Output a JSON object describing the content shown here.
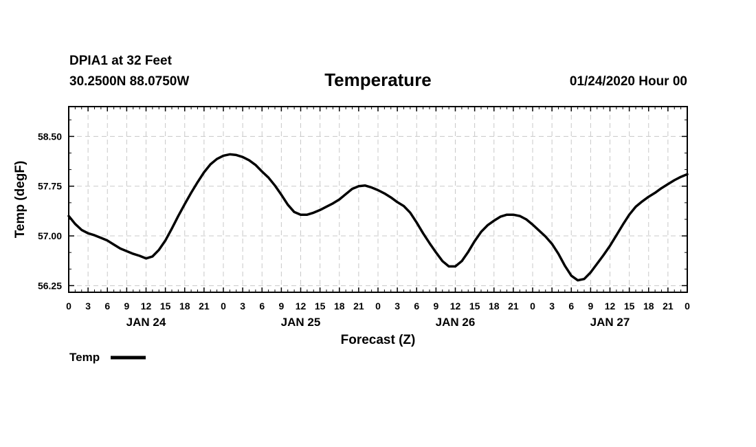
{
  "header": {
    "station": "DPIA1 at 32 Feet",
    "coords": "30.2500N 88.0750W",
    "datetime": "01/24/2020 Hour 00"
  },
  "chart_data": {
    "type": "line",
    "title": "Temperature",
    "xlabel": "Forecast (Z)",
    "ylabel": "Temp (degF)",
    "ylim": [
      56.15,
      58.95
    ],
    "xlim": [
      0,
      96
    ],
    "yticks": [
      56.25,
      57.0,
      57.75,
      58.5
    ],
    "ytick_labels": [
      "56.25",
      "57.00",
      "57.75",
      "58.50"
    ],
    "xtick_hours": [
      0,
      3,
      6,
      9,
      12,
      15,
      18,
      21,
      24,
      27,
      30,
      33,
      36,
      39,
      42,
      45,
      48,
      51,
      54,
      57,
      60,
      63,
      66,
      69,
      72,
      75,
      78,
      81,
      84,
      87,
      90,
      93,
      96
    ],
    "xtick_labels": [
      "0",
      "3",
      "6",
      "9",
      "12",
      "15",
      "18",
      "21",
      "0",
      "3",
      "6",
      "9",
      "12",
      "15",
      "18",
      "21",
      "0",
      "3",
      "6",
      "9",
      "12",
      "15",
      "18",
      "21",
      "0",
      "3",
      "6",
      "9",
      "12",
      "15",
      "18",
      "21",
      "0"
    ],
    "day_labels": [
      {
        "label": "JAN 24",
        "hour": 12
      },
      {
        "label": "JAN 25",
        "hour": 36
      },
      {
        "label": "JAN 26",
        "hour": 60
      },
      {
        "label": "JAN 27",
        "hour": 84
      }
    ],
    "grid": true,
    "legend": {
      "position": "bottom-left",
      "entries": [
        {
          "name": "Temp",
          "color": "#000000"
        }
      ]
    },
    "series": [
      {
        "name": "Temp",
        "color": "#000000",
        "x": [
          0,
          1,
          2,
          3,
          4,
          5,
          6,
          7,
          8,
          9,
          10,
          11,
          12,
          13,
          14,
          15,
          16,
          17,
          18,
          19,
          20,
          21,
          22,
          23,
          24,
          25,
          26,
          27,
          28,
          29,
          30,
          31,
          32,
          33,
          34,
          35,
          36,
          37,
          38,
          39,
          40,
          41,
          42,
          43,
          44,
          45,
          46,
          47,
          48,
          49,
          50,
          51,
          52,
          53,
          54,
          55,
          56,
          57,
          58,
          59,
          60,
          61,
          62,
          63,
          64,
          65,
          66,
          67,
          68,
          69,
          70,
          71,
          72,
          73,
          74,
          75,
          76,
          77,
          78,
          79,
          80,
          81,
          82,
          83,
          84,
          85,
          86,
          87,
          88,
          89,
          90,
          91,
          92,
          93,
          94,
          95,
          96
        ],
        "values": [
          57.3,
          57.18,
          57.09,
          57.04,
          57.01,
          56.97,
          56.93,
          56.87,
          56.81,
          56.77,
          56.73,
          56.7,
          56.66,
          56.69,
          56.79,
          56.93,
          57.11,
          57.3,
          57.48,
          57.65,
          57.81,
          57.96,
          58.08,
          58.16,
          58.21,
          58.23,
          58.22,
          58.19,
          58.14,
          58.07,
          57.97,
          57.88,
          57.76,
          57.62,
          57.47,
          57.36,
          57.32,
          57.32,
          57.35,
          57.39,
          57.44,
          57.49,
          57.55,
          57.63,
          57.71,
          57.75,
          57.76,
          57.73,
          57.69,
          57.64,
          57.58,
          57.51,
          57.45,
          57.35,
          57.2,
          57.04,
          56.89,
          56.75,
          56.62,
          56.54,
          56.54,
          56.62,
          56.76,
          56.92,
          57.06,
          57.16,
          57.23,
          57.29,
          57.32,
          57.32,
          57.3,
          57.25,
          57.17,
          57.08,
          56.99,
          56.88,
          56.73,
          56.55,
          56.4,
          56.33,
          56.35,
          56.45,
          56.58,
          56.71,
          56.85,
          57.01,
          57.17,
          57.32,
          57.44,
          57.52,
          57.59,
          57.65,
          57.72,
          57.78,
          57.84,
          57.89,
          57.93
        ]
      }
    ]
  }
}
